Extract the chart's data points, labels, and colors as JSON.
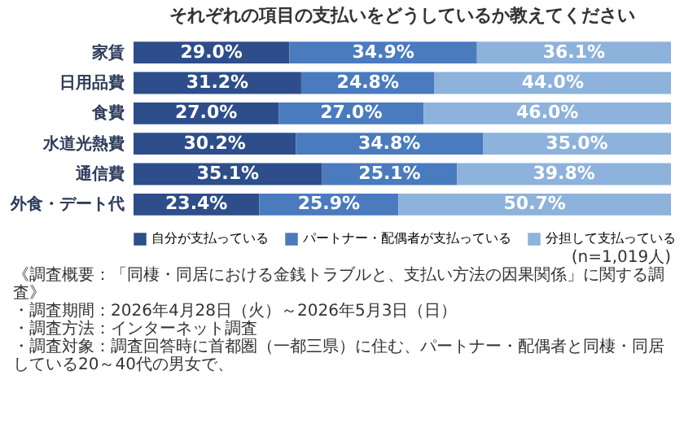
{
  "chart_data": {
    "type": "bar",
    "orientation": "horizontal",
    "stacked": true,
    "title": "それぞれの項目の支払いをどうしているか教えてください",
    "categories": [
      "家賃",
      "日用品費",
      "食費",
      "水道光熱費",
      "通信費",
      "外食・デート代"
    ],
    "series": [
      {
        "name": "自分が支払っている",
        "color": "#2d4e8a",
        "values": [
          29.0,
          31.2,
          27.0,
          30.2,
          35.1,
          23.4
        ],
        "value_labels": [
          "29.0%",
          "31.2%",
          "27.0%",
          "30.2%",
          "35.1%",
          "23.4%"
        ]
      },
      {
        "name": "パートナー・配偶者が支払っている",
        "color": "#4a7bbf",
        "values": [
          34.9,
          24.8,
          27.0,
          34.8,
          25.1,
          25.9
        ],
        "value_labels": [
          "34.9%",
          "24.8%",
          "27.0%",
          "34.8%",
          "25.1%",
          "25.9%"
        ]
      },
      {
        "name": "分担して支払っている",
        "color": "#8db2db",
        "values": [
          36.1,
          44.0,
          46.0,
          35.0,
          39.8,
          50.7
        ],
        "value_labels": [
          "36.1%",
          "44.0%",
          "46.0%",
          "35.0%",
          "39.8%",
          "50.7%"
        ]
      }
    ],
    "legend": "bottom",
    "tick_labels": "y",
    "annotations": [
      "(n=1,019人)",
      "《調査概要：「同棲・同居における金銭トラブルと、支払い方法の因果関係」に関する調査》",
      "・調査期間：2026年4月28日（火）～2026年5月3日（日）",
      "・調査方法：インターネット調査",
      "・調査対象：調査回答時に首都圏（一都三県）に住む、パートナー・配偶者と同棲・同居している20～40代の男女で、"
    ]
  }
}
